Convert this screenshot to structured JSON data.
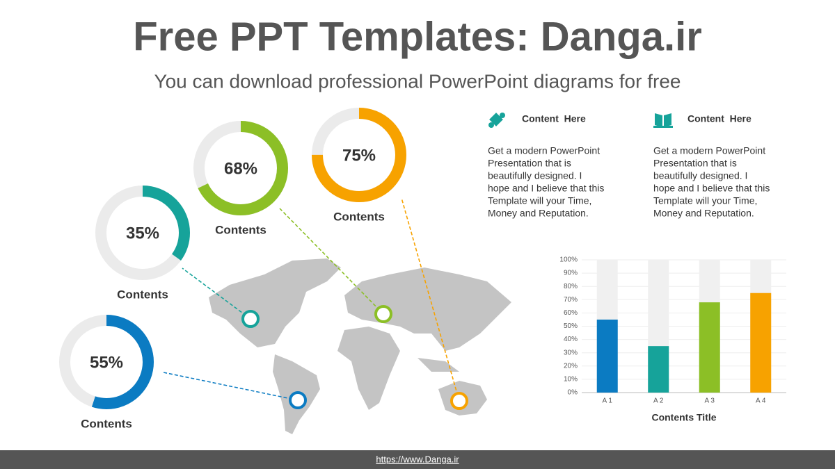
{
  "header": {
    "title": "Free PPT Templates: Danga.ir",
    "subtitle": "You can download professional PowerPoint diagrams for free"
  },
  "chart_data": [
    {
      "type": "pie",
      "values": [
        55
      ],
      "value_labels": [
        "55%"
      ],
      "caption": "Contents",
      "color": "#0b7bc2"
    },
    {
      "type": "pie",
      "values": [
        35
      ],
      "value_labels": [
        "35%"
      ],
      "caption": "Contents",
      "color": "#16a39a"
    },
    {
      "type": "pie",
      "values": [
        68
      ],
      "value_labels": [
        "68%"
      ],
      "caption": "Contents",
      "color": "#8cbf26"
    },
    {
      "type": "pie",
      "values": [
        75
      ],
      "value_labels": [
        "75%"
      ],
      "caption": "Contents",
      "color": "#f7a200"
    },
    {
      "type": "bar",
      "title": "Contents Title",
      "categories": [
        "A 1",
        "A 2",
        "A 3",
        "A 4"
      ],
      "values": [
        55,
        35,
        68,
        75
      ],
      "colors": [
        "#0b7bc2",
        "#16a39a",
        "#8cbf26",
        "#f7a200"
      ],
      "ylim": [
        0,
        100
      ],
      "yticks": [
        {
          "value": 0,
          "label": "0%"
        },
        {
          "value": 10,
          "label": "10%"
        },
        {
          "value": 20,
          "label": "20%"
        },
        {
          "value": 30,
          "label": "30%"
        },
        {
          "value": 40,
          "label": "40%"
        },
        {
          "value": 50,
          "label": "50%"
        },
        {
          "value": 60,
          "label": "60%"
        },
        {
          "value": 70,
          "label": "70%"
        },
        {
          "value": 80,
          "label": "80%"
        },
        {
          "value": 90,
          "label": "90%"
        },
        {
          "value": 100,
          "label": "100%"
        }
      ],
      "grid": true
    }
  ],
  "features": [
    {
      "title": "Content  Here",
      "lines": [
        "Get a modern PowerPoint",
        "Presentation that is",
        "beautifully designed. I",
        "hope and I believe that this",
        "Template will your Time,",
        "Money and Reputation."
      ]
    },
    {
      "title": "Content  Here",
      "lines": [
        "Get a modern PowerPoint",
        "Presentation that is",
        "beautifully designed. I",
        "hope and I believe that this",
        "Template will your Time,",
        "Money and Reputation."
      ]
    }
  ],
  "footer": {
    "url": "https://www.Danga.ir"
  }
}
